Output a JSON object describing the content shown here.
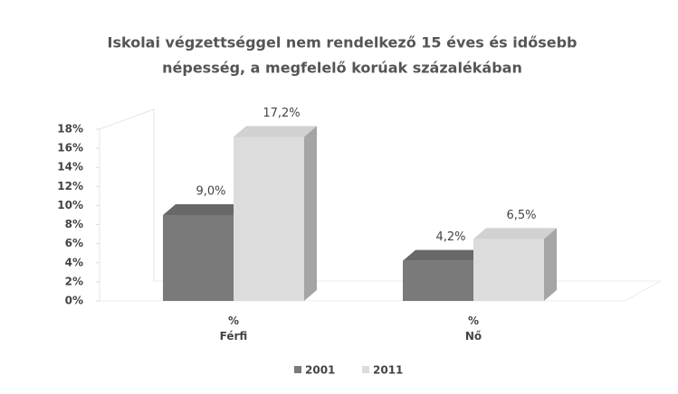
{
  "chart_data": {
    "type": "bar3d",
    "title": "Iskolai végzettséggel nem rendelkező 15 éves és idősebb népesség, a megfelelő korúak százalékában",
    "title_lines": [
      "Iskolai végzettséggel nem rendelkező 15 éves és idősebb",
      "népesség, a megfelelő korúak százalékában"
    ],
    "categories": [
      "%\nFérfi",
      "%\nNő"
    ],
    "series": [
      {
        "name": "2001",
        "color": "#7a7a7a",
        "values": [
          9.0,
          4.2
        ],
        "value_labels": [
          "9,0%",
          "4,2%"
        ]
      },
      {
        "name": "2011",
        "color": "#dcdcdc",
        "values": [
          17.2,
          6.5
        ],
        "value_labels": [
          "17,2%",
          "6,5%"
        ]
      }
    ],
    "ylim": [
      0,
      18
    ],
    "yticks": [
      {
        "value": 0,
        "label": "0%"
      },
      {
        "value": 2,
        "label": "2%"
      },
      {
        "value": 4,
        "label": "4%"
      },
      {
        "value": 6,
        "label": "6%"
      },
      {
        "value": 8,
        "label": "8%"
      },
      {
        "value": 10,
        "label": "10%"
      },
      {
        "value": 12,
        "label": "12%"
      },
      {
        "value": 14,
        "label": "14%"
      },
      {
        "value": 16,
        "label": "16%"
      },
      {
        "value": 18,
        "label": "18%"
      }
    ],
    "legend": "bottom"
  }
}
